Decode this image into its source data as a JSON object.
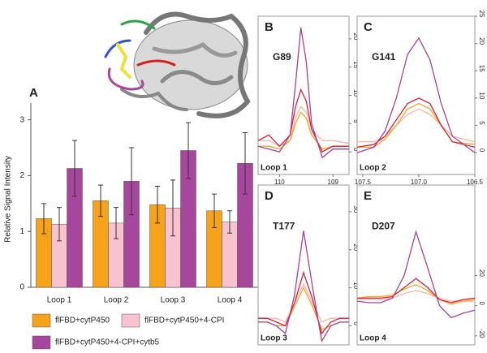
{
  "chart_data": [
    {
      "type": "bar",
      "panel_label": "A",
      "y_label": "Relative Signal Intensity",
      "categories": [
        "Loop 1",
        "Loop 2",
        "Loop 3",
        "Loop 4"
      ],
      "series": [
        {
          "name": "flFBD+cytP450",
          "color": "#f7a21b",
          "values": [
            1.23,
            1.55,
            1.48,
            1.37
          ],
          "errors": [
            0.27,
            0.28,
            0.33,
            0.3
          ]
        },
        {
          "name": "flFBD+cytP450+4-CPI",
          "color": "#f8c3cf",
          "values": [
            1.13,
            1.15,
            1.42,
            1.17
          ],
          "errors": [
            0.3,
            0.28,
            0.5,
            0.2
          ]
        },
        {
          "name": "flFBD+cytP450+4-CPI+cytb5",
          "color": "#a6479d",
          "values": [
            2.13,
            1.9,
            2.45,
            2.22
          ],
          "errors": [
            0.5,
            0.6,
            0.5,
            0.55
          ]
        }
      ],
      "ylim": [
        0,
        3.3
      ],
      "yticks": [
        0,
        1,
        2,
        3
      ]
    },
    {
      "type": "line",
      "panel_label": "B",
      "annotation": "G89",
      "loop_label": "Loop 1",
      "x": [
        110.4,
        110.2,
        110.0,
        109.8,
        109.7,
        109.6,
        109.5,
        109.4,
        109.2,
        109.0,
        108.7
      ],
      "series": [
        {
          "color": "#f7b5a5",
          "values": [
            2,
            2,
            1,
            2,
            6,
            8,
            7,
            4,
            2,
            2,
            1.5
          ]
        },
        {
          "color": "#f5a623",
          "values": [
            1,
            1,
            0.5,
            2,
            5,
            7,
            6,
            3,
            0.5,
            1,
            1
          ]
        },
        {
          "color": "#d6203a",
          "values": [
            2,
            3,
            1,
            3,
            8,
            11,
            9,
            4,
            0,
            1,
            1
          ]
        },
        {
          "color": "#a8409c",
          "values": [
            1,
            0.5,
            0,
            3,
            12,
            22,
            16,
            5,
            -1,
            0.5,
            0.5
          ]
        }
      ],
      "xlim": [
        110.4,
        108.7
      ],
      "xticks": [
        110,
        109
      ],
      "ylim": [
        -4,
        24
      ],
      "yticks": [
        0,
        5,
        10,
        15,
        20
      ]
    },
    {
      "type": "line",
      "panel_label": "C",
      "annotation": "G141",
      "loop_label": "Loop 2",
      "x": [
        107.55,
        107.4,
        107.3,
        107.2,
        107.1,
        107.0,
        106.9,
        106.8,
        106.7,
        106.5
      ],
      "series": [
        {
          "color": "#f7b5a5",
          "values": [
            2,
            2,
            3,
            5,
            7,
            8,
            7,
            5,
            3,
            2
          ]
        },
        {
          "color": "#f5a623",
          "values": [
            1,
            1,
            2.5,
            5,
            8,
            9,
            8,
            5,
            2,
            1.5
          ]
        },
        {
          "color": "#d6203a",
          "values": [
            1,
            1.5,
            3,
            6,
            9,
            10,
            9,
            5,
            2,
            1
          ]
        },
        {
          "color": "#a8409c",
          "values": [
            0,
            1,
            4,
            10,
            18,
            21,
            17,
            9,
            3,
            0
          ]
        }
      ],
      "xlim": [
        107.55,
        106.5
      ],
      "xticks": [
        {
          "value": 107.5,
          "label": "107.5"
        },
        {
          "value": 107.0,
          "label": "107.0"
        },
        {
          "value": 106.5,
          "label": "106.5"
        }
      ],
      "ylim": [
        -4,
        25
      ],
      "yticks": [
        0,
        5,
        10,
        15,
        20,
        25
      ]
    },
    {
      "type": "line",
      "panel_label": "D",
      "annotation": "T177",
      "loop_label": "Loop 3",
      "series": [
        {
          "color": "#f7b5a5",
          "values": [
            2,
            2,
            2,
            1,
            6,
            11,
            6,
            1,
            2,
            2,
            2
          ]
        },
        {
          "color": "#f5a623",
          "values": [
            1,
            1,
            0,
            0,
            5,
            10,
            5,
            -1,
            0,
            1,
            1
          ]
        },
        {
          "color": "#d6203a",
          "values": [
            2,
            2,
            1,
            0,
            6,
            14,
            7,
            -2,
            1,
            2,
            2
          ]
        },
        {
          "color": "#a8409c",
          "values": [
            1,
            1,
            0,
            -2,
            8,
            25,
            10,
            -4,
            0,
            1,
            1
          ]
        }
      ],
      "ylim": [
        -5,
        37
      ],
      "yticks": [
        0,
        10,
        20,
        30
      ]
    },
    {
      "type": "line",
      "panel_label": "E",
      "annotation": "D207",
      "loop_label": "Loop 4",
      "series": [
        {
          "color": "#f7b5a5",
          "values": [
            4,
            4,
            4,
            5,
            8,
            10,
            8,
            5,
            3,
            3,
            3
          ]
        },
        {
          "color": "#f5a623",
          "values": [
            5,
            6,
            6,
            7,
            11,
            14,
            10,
            4,
            1,
            3,
            4
          ]
        },
        {
          "color": "#d6203a",
          "values": [
            5,
            5,
            5,
            6,
            12,
            18,
            12,
            4,
            2,
            4,
            5
          ]
        },
        {
          "color": "#a8409c",
          "values": [
            3,
            2,
            2,
            5,
            20,
            49,
            25,
            0,
            -8,
            -5,
            -3
          ]
        }
      ],
      "ylim": [
        -26,
        80
      ],
      "yticks": [
        -20,
        0,
        20
      ]
    }
  ]
}
